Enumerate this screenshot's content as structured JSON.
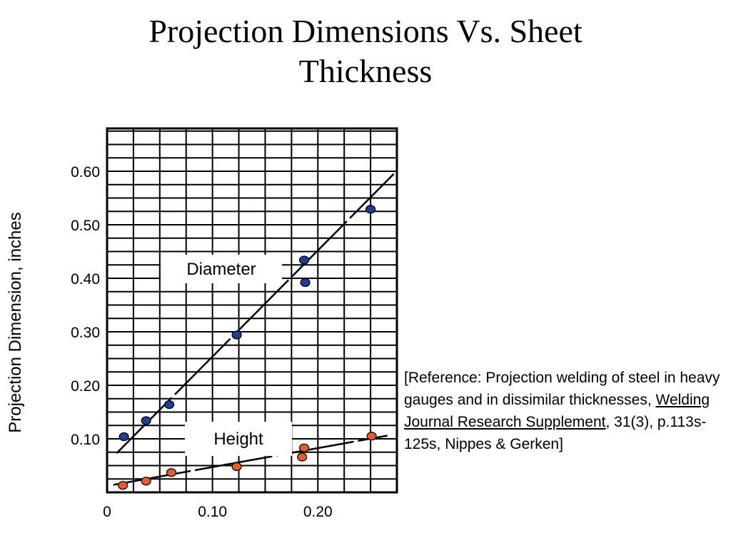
{
  "slide": {
    "title_line1": "Projection Dimensions Vs. Sheet",
    "title_line2": "Thickness"
  },
  "reference": {
    "prefix": "[Reference:  Projection welding of steel in heavy gauges and in dissimilar thicknesses, ",
    "journal": "Welding Journal Research Supplement",
    "suffix": ", 31(3), p.113s-125s, Nippes & Gerken]"
  },
  "chart_data": {
    "type": "scatter",
    "title": "",
    "xlabel": "",
    "ylabel": "Projection Dimension, inches",
    "xlim": [
      0,
      0.275
    ],
    "ylim": [
      0,
      0.68
    ],
    "x_ticks": [
      {
        "value": 0,
        "label": "0"
      },
      {
        "value": 0.1,
        "label": "0.10"
      },
      {
        "value": 0.2,
        "label": "0.20"
      }
    ],
    "y_ticks": [
      {
        "value": 0.1,
        "label": "0.10"
      },
      {
        "value": 0.2,
        "label": "0.20"
      },
      {
        "value": 0.3,
        "label": "0.30"
      },
      {
        "value": 0.4,
        "label": "0.40"
      },
      {
        "value": 0.5,
        "label": "0.50"
      },
      {
        "value": 0.6,
        "label": "0.60"
      }
    ],
    "grid": true,
    "series": [
      {
        "name": "Diameter",
        "color": "#1a3e9c",
        "points": [
          {
            "x": 0.016,
            "y": 0.104
          },
          {
            "x": 0.037,
            "y": 0.134
          },
          {
            "x": 0.059,
            "y": 0.164
          },
          {
            "x": 0.123,
            "y": 0.294
          },
          {
            "x": 0.187,
            "y": 0.434
          },
          {
            "x": 0.188,
            "y": 0.392
          },
          {
            "x": 0.25,
            "y": 0.529
          }
        ],
        "fit_line": [
          {
            "x": 0.009,
            "y": 0.073
          },
          {
            "x": 0.272,
            "y": 0.595
          }
        ]
      },
      {
        "name": "Height",
        "color": "#ee5a24",
        "points": [
          {
            "x": 0.015,
            "y": 0.013
          },
          {
            "x": 0.037,
            "y": 0.021
          },
          {
            "x": 0.061,
            "y": 0.037
          },
          {
            "x": 0.123,
            "y": 0.048
          },
          {
            "x": 0.185,
            "y": 0.066
          },
          {
            "x": 0.187,
            "y": 0.083
          },
          {
            "x": 0.251,
            "y": 0.105
          }
        ],
        "fit_line": [
          {
            "x": 0.006,
            "y": 0.014
          },
          {
            "x": 0.266,
            "y": 0.106
          }
        ]
      }
    ]
  }
}
